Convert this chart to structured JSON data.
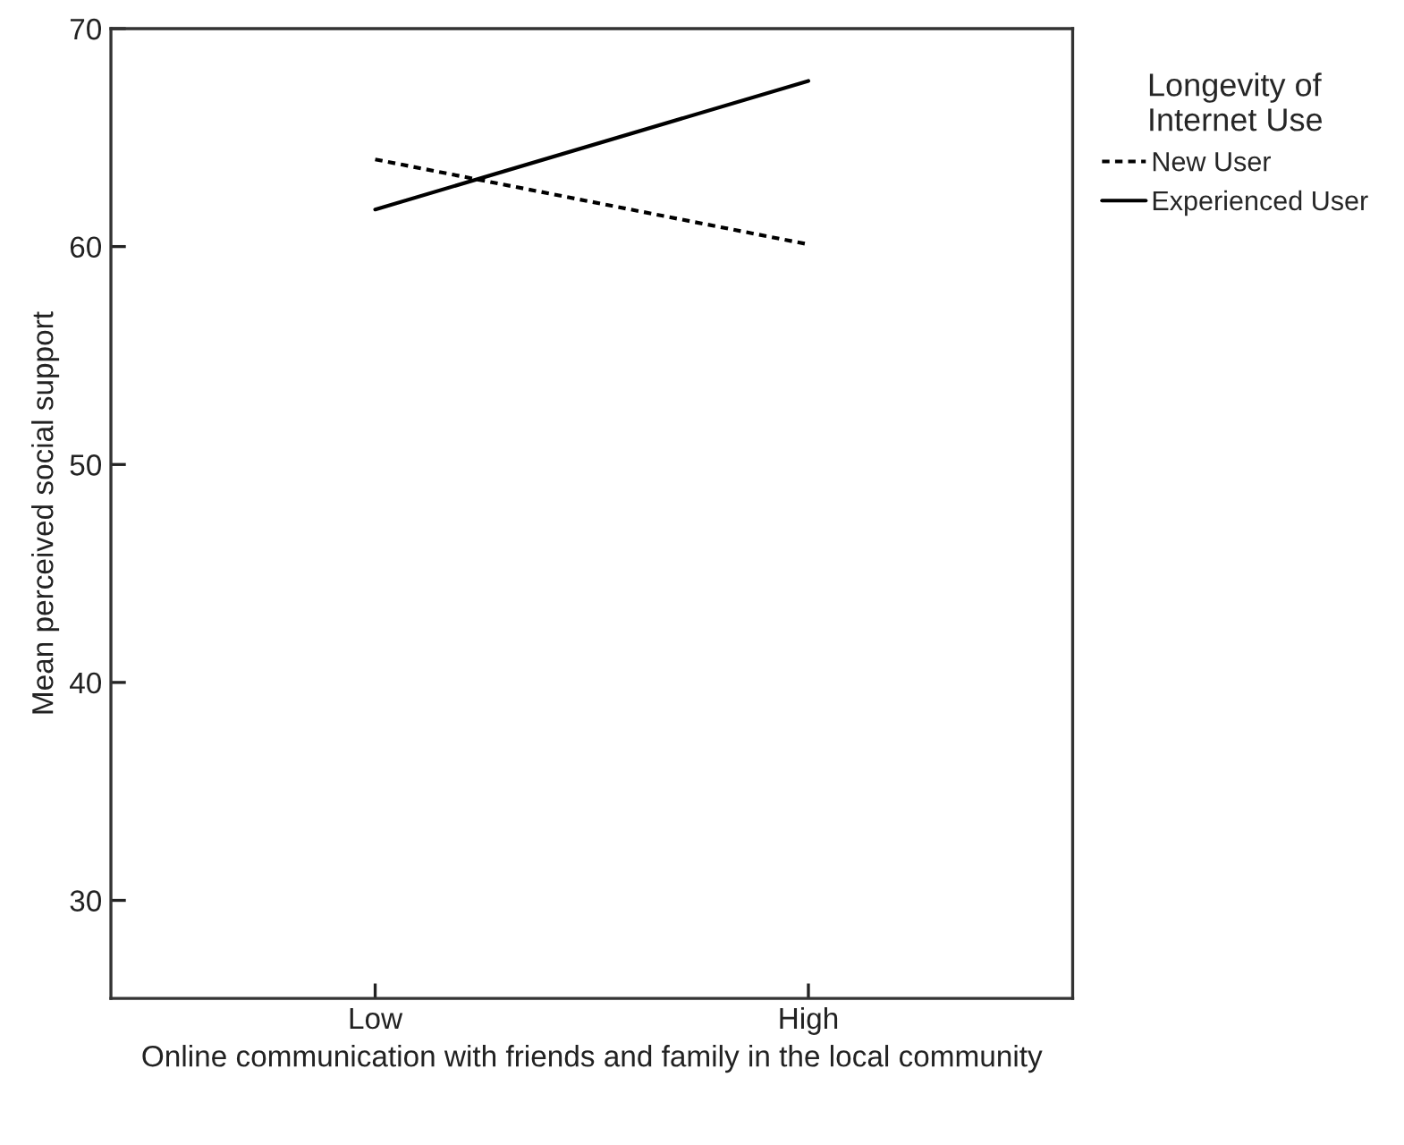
{
  "chart_data": {
    "type": "line",
    "xlabel": "Online communication with friends and family in the local community",
    "ylabel": "Mean perceived social support",
    "legend_title": "Longevity of\nInternet Use",
    "categories": [
      "Low",
      "High"
    ],
    "series": [
      {
        "name": "New User",
        "color": "#000000",
        "line_style": "dashed",
        "values": [
          64.0,
          60.1
        ]
      },
      {
        "name": "Experienced User",
        "color": "#000000",
        "line_style": "solid",
        "values": [
          61.7,
          67.6
        ]
      }
    ],
    "ylim": [
      25.5,
      70
    ],
    "yticks": [
      30,
      40,
      50,
      60,
      70
    ],
    "grid": false,
    "legend": "top right"
  }
}
